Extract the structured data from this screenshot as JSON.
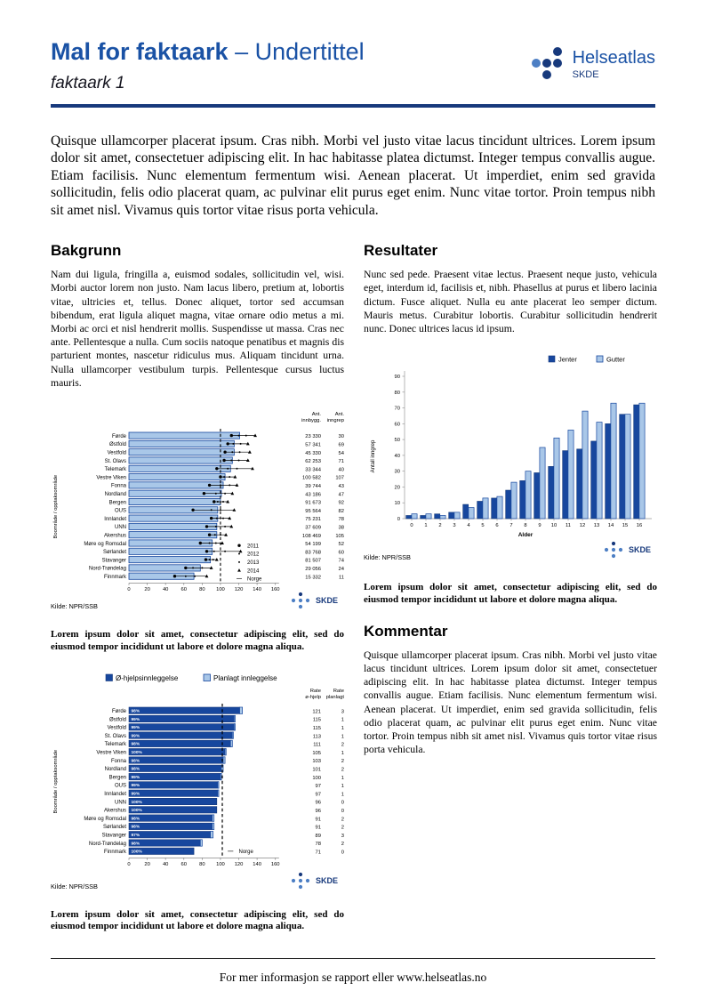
{
  "header": {
    "title": "Mal for faktaark",
    "title_suffix": " – Undertittel",
    "subtitle": "faktaark 1",
    "logo": {
      "name": "Helseatlas",
      "sub": "SKDE"
    }
  },
  "intro": "Quisque ullamcorper placerat ipsum. Cras nibh. Morbi vel justo vitae lacus tincidunt ultrices. Lorem ipsum dolor sit amet, consectetuer adipiscing elit. In hac habitasse platea dictumst. Integer tempus convallis augue. Etiam facilisis. Nunc elementum fermentum wisi. Aenean placerat. Ut imperdiet, enim sed gravida sollicitudin, felis odio placerat quam, ac pulvinar elit purus eget enim. Nunc vitae tortor. Proin tempus nibh sit amet nisl. Vivamus quis tortor vitae risus porta vehicula.",
  "sections": {
    "bakgrunn": {
      "heading": "Bakgrunn",
      "body": "Nam dui ligula, fringilla a, euismod sodales, sollicitudin vel, wisi. Morbi auctor lorem non justo. Nam lacus libero, pretium at, lobortis vitae, ultricies et, tellus. Donec aliquet, tortor sed accumsan bibendum, erat ligula aliquet magna, vitae ornare odio metus a mi. Morbi ac orci et nisl hendrerit mollis. Suspendisse ut massa. Cras nec ante. Pellentesque a nulla. Cum sociis natoque penatibus et magnis dis parturient montes, nascetur ridiculus mus. Aliquam tincidunt urna. Nulla ullamcorper vestibulum turpis. Pellentesque cursus luctus mauris."
    },
    "resultater": {
      "heading": "Resultater",
      "body": "Nunc sed pede. Praesent vitae lectus. Praesent neque justo, vehicula eget, interdum id, facilisis et, nibh. Phasellus at purus et libero lacinia dictum. Fusce aliquet. Nulla eu ante placerat leo semper dictum. Mauris metus. Curabitur lobortis. Curabitur sollicitudin hendrerit nunc. Donec ultrices lacus id ipsum."
    },
    "kommentar": {
      "heading": "Kommentar",
      "body": "Quisque ullamcorper placerat ipsum. Cras nibh. Morbi vel justo vitae lacus tincidunt ultrices. Lorem ipsum dolor sit amet, consectetuer adipiscing elit. In hac habitasse platea dictumst. Integer tempus convallis augue. Etiam facilisis. Nunc elementum fermentum wisi. Aenean placerat. Ut imperdiet, enim sed gravida sollicitudin, felis odio placerat quam, ac pulvinar elit purus eget enim. Nunc vitae tortor. Proin tempus nibh sit amet nisl. Vivamus quis tortor vitae risus porta vehicula."
    }
  },
  "captions": {
    "chart1": "Lorem ipsum dolor sit amet, consectetur adipiscing elit, sed do eiusmod tempor incididunt ut labore et dolore magna aliqua.",
    "chart2": "Lorem ipsum dolor sit amet, consectetur adipiscing elit, sed do eiusmod tempor incididunt ut labore et dolore magna aliqua.",
    "chart3": "Lorem ipsum dolor sit amet, consectetur adipiscing elit, sed do eiusmod tempor incididunt ut labore et dolore magna aliqua."
  },
  "footer": "For mer informasjon se rapport eller www.helseatlas.no",
  "colors": {
    "brand_blue": "#1a52a5",
    "rule_navy": "#17397c",
    "bar_dark": "#17479e",
    "bar_light": "#a9c7e8"
  },
  "chart_data": [
    {
      "id": "chart1",
      "type": "bar",
      "orientation": "horizontal",
      "ylabel": "Boområde / opptaksområde",
      "categories": [
        "Førde",
        "Østfold",
        "Vestfold",
        "St. Olavs",
        "Telemark",
        "Vestre Viken",
        "Fonna",
        "Nordland",
        "Bergen",
        "OUS",
        "Innlandet",
        "UNN",
        "Akershus",
        "Møre og Romsdal",
        "Sørlandet",
        "Stavanger",
        "Nord-Trøndelag",
        "Finnmark"
      ],
      "values": [
        121,
        115,
        115,
        113,
        111,
        105,
        103,
        101,
        100,
        97,
        97,
        96,
        96,
        91,
        91,
        89,
        78,
        71
      ],
      "year_points": [
        [
          112,
          120,
          128,
          138
        ],
        [
          108,
          114,
          122,
          130
        ],
        [
          105,
          113,
          121,
          132
        ],
        [
          104,
          112,
          120,
          130
        ],
        [
          96,
          108,
          118,
          135
        ],
        [
          100,
          104,
          110,
          116
        ],
        [
          88,
          100,
          110,
          118
        ],
        [
          82,
          95,
          105,
          113
        ],
        [
          93,
          97,
          103,
          108
        ],
        [
          70,
          90,
          100,
          115
        ],
        [
          90,
          96,
          103,
          110
        ],
        [
          85,
          95,
          105,
          112
        ],
        [
          88,
          94,
          100,
          106
        ],
        [
          78,
          88,
          95,
          102
        ],
        [
          85,
          93,
          105,
          122
        ],
        [
          84,
          88,
          92,
          96
        ],
        [
          62,
          70,
          80,
          90
        ],
        [
          50,
          62,
          72,
          85
        ]
      ],
      "legend": [
        "2011",
        "2012",
        "2013",
        "2014",
        "Norge"
      ],
      "norge_line": 100,
      "xlim": [
        0,
        160
      ],
      "xticks": [
        0,
        20,
        40,
        60,
        80,
        100,
        120,
        140,
        160
      ],
      "columns": {
        "col1_header_line1": "Ant.",
        "col1_header_line2": "innbygg.",
        "col2_header_line1": "Ant.",
        "col2_header_line2": "inngrep",
        "col1": [
          "23 330",
          "57 341",
          "45 330",
          "62 253",
          "33 344",
          "100 582",
          "39 744",
          "43 186",
          "91 673",
          "95 564",
          "75 231",
          "37 609",
          "108 469",
          "54 199",
          "83 768",
          "81 507",
          "29 056",
          "15 332"
        ],
        "col2": [
          "30",
          "69",
          "54",
          "71",
          "40",
          "107",
          "43",
          "47",
          "92",
          "82",
          "78",
          "38",
          "105",
          "52",
          "60",
          "74",
          "24",
          "11"
        ]
      },
      "source": "Kilde: NPR/SSB"
    },
    {
      "id": "chart2",
      "type": "bar",
      "orientation": "vertical",
      "xlabel": "Alder",
      "ylabel": "Antall inngrep",
      "categories": [
        "0",
        "1",
        "2",
        "3",
        "4",
        "5",
        "6",
        "7",
        "8",
        "9",
        "10",
        "11",
        "12",
        "13",
        "14",
        "15",
        "16"
      ],
      "series": [
        {
          "name": "Jenter",
          "values": [
            2,
            2,
            3,
            4,
            9,
            11,
            13,
            18,
            24,
            29,
            33,
            43,
            44,
            49,
            60,
            66,
            72
          ]
        },
        {
          "name": "Gutter",
          "values": [
            3,
            3,
            2,
            4,
            7,
            13,
            14,
            23,
            30,
            45,
            51,
            56,
            68,
            61,
            73,
            66,
            73
          ]
        }
      ],
      "ylim": [
        0,
        90
      ],
      "yticks": [
        0,
        10,
        20,
        30,
        40,
        50,
        60,
        70,
        80,
        90
      ],
      "source": "Kilde: NPR/SSB"
    },
    {
      "id": "chart3",
      "type": "bar",
      "orientation": "horizontal",
      "stacked": true,
      "ylabel": "Boområde / opptaksområde",
      "categories": [
        "Førde",
        "Østfold",
        "Vestfold",
        "St. Olavs",
        "Telemark",
        "Vestre Viken",
        "Fonna",
        "Nordland",
        "Bergen",
        "OUS",
        "Innlandet",
        "UNN",
        "Akershus",
        "Møre og Romsdal",
        "Sørlandet",
        "Stavanger",
        "Nord-Trøndelag",
        "Finnmark"
      ],
      "series": [
        {
          "name": "Ø-hjelpsinnleggelse",
          "values": [
            121,
            115,
            115,
            113,
            111,
            105,
            103,
            101,
            100,
            97,
            97,
            96,
            96,
            91,
            91,
            89,
            78,
            71
          ]
        },
        {
          "name": "Planlagt innleggelse",
          "values": [
            3,
            1,
            1,
            1,
            2,
            1,
            2,
            2,
            1,
            1,
            1,
            0,
            0,
            2,
            2,
            3,
            2,
            0
          ]
        }
      ],
      "bar_labels": [
        "98%",
        "99%",
        "99%",
        "99%",
        "98%",
        "100%",
        "98%",
        "98%",
        "99%",
        "99%",
        "99%",
        "100%",
        "100%",
        "98%",
        "98%",
        "97%",
        "98%",
        "100%"
      ],
      "norge_label": "Norge",
      "norge_line": 102,
      "xlim": [
        0,
        160
      ],
      "xticks": [
        0,
        20,
        40,
        60,
        80,
        100,
        120,
        140,
        160
      ],
      "columns": {
        "col1_header_line1": "Rate",
        "col1_header_line2": "ø-hjelp",
        "col2_header_line1": "Rate",
        "col2_header_line2": "planlagt",
        "col1": [
          "121",
          "115",
          "115",
          "113",
          "111",
          "105",
          "103",
          "101",
          "100",
          "97",
          "97",
          "96",
          "96",
          "91",
          "91",
          "89",
          "78",
          "71"
        ],
        "col2": [
          "3",
          "1",
          "1",
          "1",
          "2",
          "1",
          "2",
          "2",
          "1",
          "1",
          "1",
          "0",
          "0",
          "2",
          "2",
          "3",
          "2",
          "0"
        ]
      },
      "source": "Kilde: NPR/SSB"
    }
  ]
}
